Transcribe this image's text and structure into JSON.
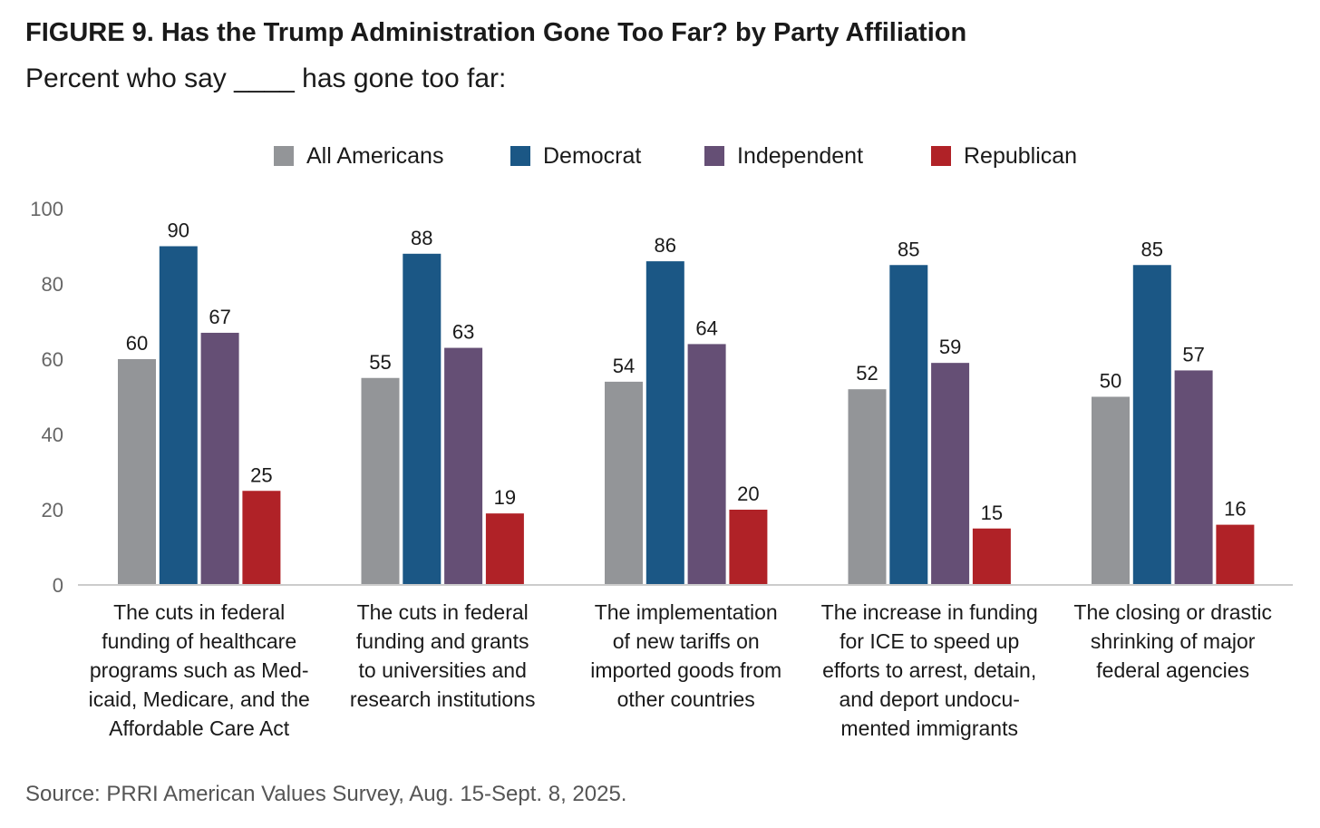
{
  "title": "FIGURE 9.  Has the Trump Administration Gone Too Far? by Party Affiliation",
  "subtitle": "Percent who say ____ has gone too far:",
  "source": "Source: PRRI American Values Survey, Aug. 15-Sept. 8, 2025.",
  "chart_data": {
    "type": "bar",
    "title": "FIGURE 9.  Has the Trump Administration Gone Too Far? by Party Affiliation",
    "subtitle": "Percent who say ____ has gone too far:",
    "xlabel": "",
    "ylabel": "",
    "ylim": [
      0,
      100
    ],
    "yticks": [
      0,
      20,
      40,
      60,
      80,
      100
    ],
    "grid": false,
    "legend_position": "top-center",
    "categories": [
      [
        "The cuts in federal",
        "funding of healthcare",
        "programs such as Med-",
        "icaid, Medicare, and the",
        "Affordable Care Act"
      ],
      [
        "The cuts in federal",
        "funding and grants",
        "to universities and",
        "research institutions"
      ],
      [
        "The implementation",
        "of new tariffs on",
        "imported goods from",
        "other countries"
      ],
      [
        "The increase in funding",
        "for ICE to speed up",
        "efforts to arrest, detain,",
        "and deport undocu-",
        "mented immigrants"
      ],
      [
        "The closing or drastic",
        "shrinking of major",
        "federal agencies"
      ]
    ],
    "series": [
      {
        "name": "All Americans",
        "color": "#939598",
        "values": [
          60,
          55,
          54,
          52,
          50
        ]
      },
      {
        "name": "Democrat",
        "color": "#1b5785",
        "values": [
          90,
          88,
          86,
          85,
          85
        ]
      },
      {
        "name": "Independent",
        "color": "#654f75",
        "values": [
          67,
          63,
          64,
          59,
          57
        ]
      },
      {
        "name": "Republican",
        "color": "#b02227",
        "values": [
          25,
          19,
          20,
          15,
          16
        ]
      }
    ],
    "axis_color": "#cccccc",
    "tick_label_color": "#666666"
  }
}
